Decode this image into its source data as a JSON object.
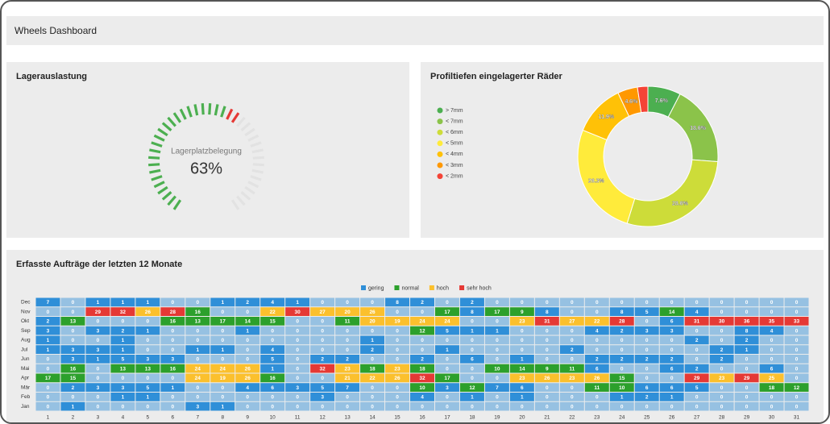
{
  "header": {
    "title": "Wheels Dashboard"
  },
  "chart_data": [
    {
      "type": "gauge",
      "title": "Lagerauslastung",
      "label": "Lagerplatzbelegung",
      "value": 63,
      "value_label": "63%",
      "ylim": [
        0,
        100
      ],
      "color": "#4caf50",
      "end_color": "#e53935"
    },
    {
      "type": "pie",
      "title": "Profiltiefen eingelagerter Räder",
      "categories": [
        "> 7mm",
        "< 7mm",
        "< 6mm",
        "< 5mm",
        "< 4mm",
        "< 3mm",
        "< 2mm"
      ],
      "values": [
        7.6,
        18.6,
        28.6,
        26.3,
        11.9,
        4.6,
        2.4
      ],
      "value_labels": [
        "7.6%",
        "18.6%",
        "28.6%",
        "26.3%",
        "11.9%",
        "4.6%",
        null
      ],
      "colors": [
        "#4caf50",
        "#8bc34a",
        "#cddc39",
        "#ffeb3b",
        "#ffc107",
        "#ff9800",
        "#f44336"
      ]
    },
    {
      "type": "heatmap",
      "title": "Erfasste Aufträge der letzten 12 Monate",
      "x": [
        1,
        2,
        3,
        4,
        5,
        6,
        7,
        8,
        9,
        10,
        11,
        12,
        13,
        14,
        15,
        16,
        17,
        18,
        19,
        20,
        21,
        22,
        23,
        24,
        25,
        26,
        27,
        28,
        29,
        30,
        31
      ],
      "y": [
        "Dec",
        "Nov",
        "Okt",
        "Sep",
        "Aug",
        "Jul",
        "Jun",
        "Mai",
        "Apr",
        "Mär",
        "Feb",
        "Jan"
      ],
      "legend": [
        {
          "name": "gering",
          "color": "#2f8fd8",
          "min": 0
        },
        {
          "name": "normal",
          "color": "#2ca02c",
          "min": 9
        },
        {
          "name": "hoch",
          "color": "#fbc02d",
          "min": 19
        },
        {
          "name": "sehr hoch",
          "color": "#e53935",
          "min": 28
        }
      ],
      "values": [
        [
          7,
          0,
          1,
          1,
          1,
          0,
          0,
          1,
          2,
          4,
          1,
          0,
          0,
          0,
          8,
          2,
          0,
          2,
          0,
          0,
          0,
          0,
          0,
          0,
          0,
          0,
          0,
          0,
          0,
          0,
          0
        ],
        [
          0,
          0,
          29,
          32,
          26,
          28,
          16,
          0,
          0,
          22,
          30,
          27,
          20,
          26,
          0,
          0,
          17,
          8,
          17,
          9,
          8,
          0,
          0,
          8,
          5,
          14,
          4,
          0,
          0,
          0,
          0
        ],
        [
          2,
          13,
          0,
          0,
          0,
          16,
          13,
          17,
          14,
          15,
          0,
          0,
          11,
          20,
          19,
          24,
          24,
          0,
          0,
          23,
          31,
          27,
          22,
          28,
          0,
          6,
          31,
          30,
          36,
          35,
          33
        ],
        [
          3,
          0,
          3,
          2,
          1,
          0,
          0,
          0,
          1,
          0,
          0,
          0,
          0,
          0,
          0,
          12,
          5,
          1,
          1,
          0,
          0,
          0,
          4,
          2,
          3,
          3,
          0,
          0,
          8,
          4,
          0
        ],
        [
          1,
          0,
          0,
          1,
          0,
          0,
          0,
          0,
          0,
          0,
          0,
          0,
          0,
          1,
          0,
          0,
          0,
          0,
          0,
          0,
          0,
          0,
          0,
          0,
          0,
          0,
          2,
          0,
          2,
          0,
          0
        ],
        [
          1,
          3,
          3,
          1,
          0,
          0,
          1,
          1,
          0,
          4,
          0,
          0,
          0,
          2,
          0,
          0,
          1,
          0,
          0,
          0,
          0,
          2,
          0,
          0,
          0,
          0,
          0,
          2,
          1,
          0,
          0
        ],
        [
          0,
          3,
          1,
          5,
          3,
          3,
          0,
          0,
          0,
          5,
          0,
          2,
          2,
          0,
          0,
          2,
          0,
          6,
          0,
          1,
          0,
          0,
          2,
          2,
          2,
          2,
          0,
          2,
          0,
          0,
          0
        ],
        [
          0,
          16,
          0,
          13,
          13,
          16,
          24,
          24,
          26,
          1,
          0,
          32,
          23,
          18,
          23,
          18,
          0,
          0,
          10,
          14,
          9,
          11,
          6,
          0,
          0,
          6,
          2,
          0,
          0,
          6,
          0
        ],
        [
          17,
          15,
          0,
          0,
          0,
          0,
          24,
          19,
          26,
          16,
          0,
          0,
          21,
          22,
          26,
          32,
          17,
          0,
          0,
          23,
          26,
          23,
          26,
          15,
          0,
          0,
          29,
          23,
          29,
          25,
          0
        ],
        [
          0,
          2,
          3,
          3,
          5,
          1,
          0,
          0,
          4,
          6,
          3,
          5,
          7,
          0,
          0,
          10,
          3,
          12,
          7,
          6,
          0,
          0,
          11,
          10,
          6,
          6,
          5,
          0,
          0,
          18,
          12
        ],
        [
          0,
          0,
          0,
          1,
          1,
          0,
          0,
          0,
          0,
          0,
          0,
          3,
          0,
          0,
          0,
          4,
          0,
          1,
          0,
          1,
          0,
          0,
          0,
          1,
          2,
          1,
          0,
          0,
          0,
          0,
          0
        ],
        [
          0,
          1,
          0,
          0,
          0,
          0,
          3,
          1,
          0,
          0,
          0,
          0,
          0,
          0,
          0,
          0,
          0,
          0,
          0,
          0,
          0,
          0,
          0,
          0,
          0,
          0,
          0,
          0,
          0,
          0,
          0
        ]
      ]
    }
  ]
}
